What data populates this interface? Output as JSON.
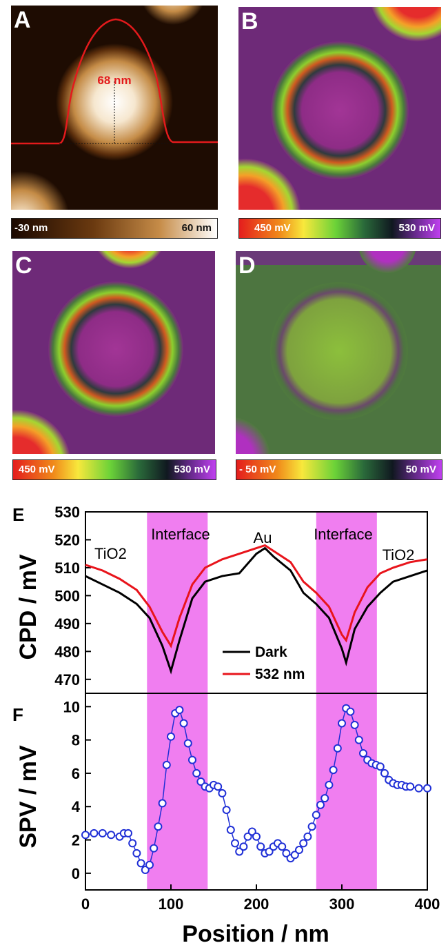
{
  "panels": {
    "a": {
      "letter": "A",
      "height_annotation": "68 nm",
      "colorbar_min": "-30 nm",
      "colorbar_max": "60 nm"
    },
    "b": {
      "letter": "B",
      "colorbar_min": "450 mV",
      "colorbar_max": "530 mV"
    },
    "c": {
      "letter": "C",
      "colorbar_min": "450 mV",
      "colorbar_max": "530 mV"
    },
    "d": {
      "letter": "D",
      "colorbar_min": "- 50 mV",
      "colorbar_max": "50 mV"
    }
  },
  "colors": {
    "dark_line": "#000000",
    "light_line": "#e8141b",
    "spv_marker": "#1f2fd6",
    "interface_band": "#f07ef0",
    "topo_profile": "#e31a1c"
  },
  "chart_data": [
    {
      "type": "line",
      "panel": "E",
      "ylabel": "CPD / mV",
      "ylim": [
        465,
        530
      ],
      "yticks": [
        470,
        480,
        490,
        500,
        510,
        520,
        530
      ],
      "xlim": [
        0,
        400
      ],
      "annotations": [
        "TiO2",
        "Interface",
        "Au",
        "Interface",
        "TiO2"
      ],
      "interface_regions": [
        [
          72,
          143
        ],
        [
          270,
          341
        ]
      ],
      "series": [
        {
          "name": "Dark",
          "color": "#000000",
          "x": [
            0,
            20,
            40,
            60,
            75,
            90,
            100,
            110,
            125,
            140,
            160,
            180,
            200,
            210,
            220,
            240,
            255,
            270,
            285,
            300,
            305,
            315,
            330,
            345,
            360,
            380,
            400
          ],
          "y": [
            507,
            504,
            501,
            497,
            492,
            482,
            473,
            484,
            499,
            505,
            507,
            508,
            515,
            517,
            514,
            509,
            501,
            497,
            492,
            481,
            476,
            488,
            496,
            501,
            505,
            507,
            509
          ]
        },
        {
          "name": "532 nm",
          "color": "#e8141b",
          "x": [
            0,
            20,
            40,
            60,
            75,
            90,
            100,
            110,
            125,
            140,
            160,
            180,
            200,
            210,
            220,
            240,
            255,
            270,
            285,
            300,
            305,
            315,
            330,
            345,
            360,
            380,
            400
          ],
          "y": [
            511,
            509,
            506,
            502,
            496,
            487,
            482,
            492,
            504,
            510,
            513,
            515,
            517,
            518,
            516,
            512,
            505,
            501,
            496,
            486,
            484,
            494,
            503,
            508,
            510,
            512,
            513
          ]
        }
      ]
    },
    {
      "type": "scatter",
      "panel": "F",
      "ylabel": "SPV / mV",
      "xlabel": "Position / nm",
      "ylim": [
        -1,
        10.8
      ],
      "yticks": [
        0,
        2,
        4,
        6,
        8,
        10
      ],
      "xlim": [
        0,
        400
      ],
      "xticks": [
        0,
        100,
        200,
        300,
        400
      ],
      "interface_regions": [
        [
          72,
          143
        ],
        [
          270,
          341
        ]
      ],
      "series": [
        {
          "name": "",
          "color": "#1f2fd6",
          "x": [
            0,
            10,
            20,
            30,
            40,
            45,
            50,
            55,
            60,
            65,
            70,
            75,
            80,
            85,
            90,
            95,
            100,
            105,
            110,
            115,
            120,
            125,
            130,
            135,
            140,
            145,
            150,
            155,
            160,
            165,
            170,
            175,
            180,
            185,
            190,
            195,
            200,
            205,
            210,
            215,
            220,
            225,
            230,
            235,
            240,
            245,
            250,
            255,
            260,
            265,
            270,
            275,
            280,
            285,
            290,
            295,
            300,
            305,
            310,
            315,
            320,
            325,
            330,
            335,
            340,
            345,
            350,
            355,
            360,
            365,
            370,
            375,
            380,
            390,
            400
          ],
          "y": [
            2.3,
            2.4,
            2.4,
            2.3,
            2.2,
            2.4,
            2.4,
            1.8,
            1.2,
            0.6,
            0.2,
            0.5,
            1.5,
            2.8,
            4.2,
            6.5,
            8.2,
            9.6,
            9.8,
            9.0,
            7.8,
            6.8,
            6.0,
            5.5,
            5.2,
            5.1,
            5.3,
            5.2,
            4.8,
            3.8,
            2.6,
            1.8,
            1.3,
            1.6,
            2.2,
            2.5,
            2.2,
            1.6,
            1.2,
            1.3,
            1.6,
            1.8,
            1.6,
            1.2,
            0.9,
            1.1,
            1.4,
            1.8,
            2.2,
            2.8,
            3.5,
            4.1,
            4.5,
            5.3,
            6.2,
            7.5,
            9.0,
            9.9,
            9.7,
            8.9,
            8.0,
            7.2,
            6.8,
            6.6,
            6.5,
            6.4,
            6.0,
            5.6,
            5.4,
            5.3,
            5.3,
            5.2,
            5.2,
            5.1,
            5.1
          ]
        }
      ]
    }
  ]
}
